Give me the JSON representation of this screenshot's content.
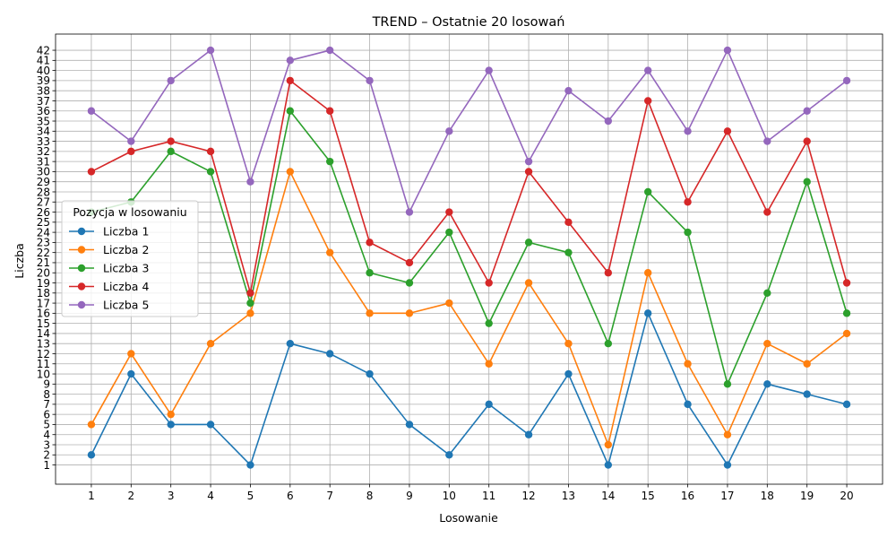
{
  "chart_data": {
    "type": "line",
    "title": "TREND – Ostatnie 20 losowań",
    "xlabel": "Losowanie",
    "ylabel": "Liczba",
    "x": [
      1,
      2,
      3,
      4,
      5,
      6,
      7,
      8,
      9,
      10,
      11,
      12,
      13,
      14,
      15,
      16,
      17,
      18,
      19,
      20
    ],
    "xlim": [
      0.1,
      20.9
    ],
    "ylim": [
      -0.9,
      43.6
    ],
    "yticks": [
      1,
      2,
      3,
      4,
      5,
      6,
      7,
      8,
      9,
      10,
      11,
      12,
      13,
      14,
      15,
      16,
      17,
      18,
      19,
      20,
      21,
      22,
      23,
      24,
      25,
      26,
      27,
      28,
      29,
      30,
      31,
      32,
      33,
      34,
      35,
      36,
      37,
      38,
      39,
      40,
      41,
      42
    ],
    "grid": true,
    "legend": {
      "title": "Pozycja w losowaniu",
      "placement": "center-left"
    },
    "series": [
      {
        "name": "Liczba 1",
        "color": "#1f77b4",
        "values": [
          2,
          10,
          5,
          5,
          1,
          13,
          12,
          10,
          5,
          2,
          7,
          4,
          10,
          1,
          16,
          7,
          1,
          9,
          8,
          7
        ]
      },
      {
        "name": "Liczba 2",
        "color": "#ff7f0e",
        "values": [
          5,
          12,
          6,
          13,
          16,
          30,
          22,
          16,
          16,
          17,
          11,
          19,
          13,
          3,
          20,
          11,
          4,
          13,
          11,
          14
        ]
      },
      {
        "name": "Liczba 3",
        "color": "#2ca02c",
        "values": [
          26,
          27,
          32,
          30,
          17,
          36,
          31,
          20,
          19,
          24,
          15,
          23,
          22,
          13,
          28,
          24,
          9,
          18,
          29,
          16
        ]
      },
      {
        "name": "Liczba 4",
        "color": "#d62728",
        "values": [
          30,
          32,
          33,
          32,
          18,
          39,
          36,
          23,
          21,
          26,
          19,
          30,
          25,
          20,
          37,
          27,
          34,
          26,
          33,
          19
        ]
      },
      {
        "name": "Liczba 5",
        "color": "#9467bd",
        "values": [
          36,
          33,
          39,
          42,
          29,
          41,
          42,
          39,
          26,
          34,
          40,
          31,
          38,
          35,
          40,
          34,
          42,
          33,
          36,
          39
        ]
      }
    ]
  }
}
